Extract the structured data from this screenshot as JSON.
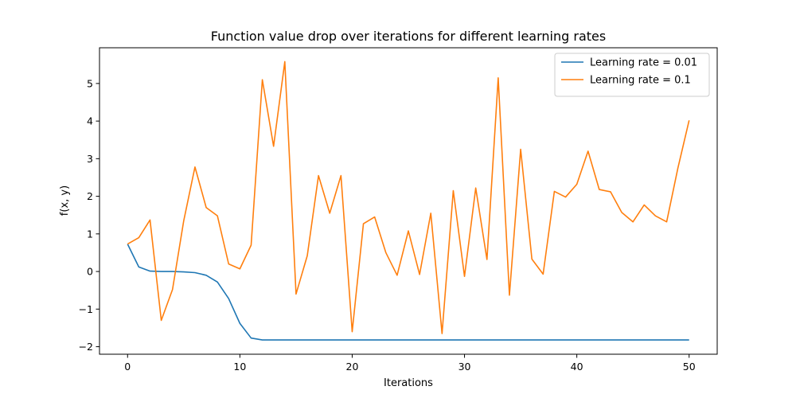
{
  "chart_data": {
    "type": "line",
    "title": "Function value drop over iterations for different learning rates",
    "xlabel": "Iterations",
    "ylabel": "f(x, y)",
    "xlim": [
      -2.5,
      52.5
    ],
    "ylim": [
      -2.2,
      5.95
    ],
    "xticks": [
      0,
      10,
      20,
      30,
      40,
      50
    ],
    "yticks": [
      -2,
      -1,
      0,
      1,
      2,
      3,
      4,
      5
    ],
    "grid": false,
    "legend_position": "top-right",
    "x": [
      0,
      1,
      2,
      3,
      4,
      5,
      6,
      7,
      8,
      9,
      10,
      11,
      12,
      13,
      14,
      15,
      16,
      17,
      18,
      19,
      20,
      21,
      22,
      23,
      24,
      25,
      26,
      27,
      28,
      29,
      30,
      31,
      32,
      33,
      34,
      35,
      36,
      37,
      38,
      39,
      40,
      41,
      42,
      43,
      44,
      45,
      46,
      47,
      48,
      49,
      50
    ],
    "series": [
      {
        "name": "Learning rate = 0.01",
        "color": "#1f77b4",
        "values": [
          0.73,
          0.12,
          0.01,
          0.0,
          0.0,
          -0.01,
          -0.03,
          -0.1,
          -0.28,
          -0.72,
          -1.38,
          -1.77,
          -1.82,
          -1.82,
          -1.82,
          -1.82,
          -1.82,
          -1.82,
          -1.82,
          -1.82,
          -1.82,
          -1.82,
          -1.82,
          -1.82,
          -1.82,
          -1.82,
          -1.82,
          -1.82,
          -1.82,
          -1.82,
          -1.82,
          -1.82,
          -1.82,
          -1.82,
          -1.82,
          -1.82,
          -1.82,
          -1.82,
          -1.82,
          -1.82,
          -1.82,
          -1.82,
          -1.82,
          -1.82,
          -1.82,
          -1.82,
          -1.82,
          -1.82,
          -1.82,
          -1.82,
          -1.82
        ]
      },
      {
        "name": "Learning rate = 0.1",
        "color": "#ff7f0e",
        "values": [
          0.73,
          0.9,
          1.37,
          -1.3,
          -0.48,
          1.35,
          2.78,
          1.7,
          1.48,
          0.2,
          0.07,
          0.7,
          5.1,
          3.33,
          5.58,
          -0.6,
          0.42,
          2.55,
          1.55,
          2.55,
          -1.6,
          1.27,
          1.45,
          0.5,
          -0.1,
          1.08,
          -0.08,
          1.55,
          -1.65,
          2.15,
          -0.13,
          2.22,
          0.32,
          5.15,
          -0.63,
          3.25,
          0.33,
          -0.07,
          2.13,
          1.98,
          2.32,
          3.2,
          2.18,
          2.12,
          1.57,
          1.32,
          1.77,
          1.48,
          1.32,
          2.75,
          4.02
        ]
      }
    ]
  }
}
